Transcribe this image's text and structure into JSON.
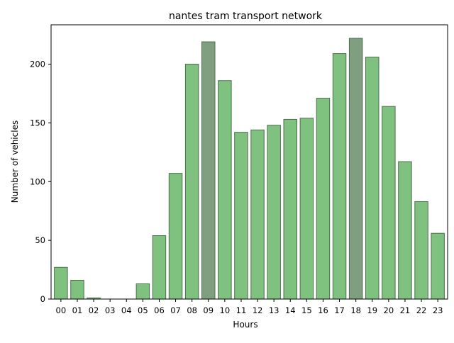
{
  "chart_data": {
    "type": "bar",
    "title": "nantes tram transport network",
    "xlabel": "Hours",
    "ylabel": "Number of vehicles",
    "categories": [
      "00",
      "01",
      "02",
      "03",
      "04",
      "05",
      "06",
      "07",
      "08",
      "09",
      "10",
      "11",
      "12",
      "13",
      "14",
      "15",
      "16",
      "17",
      "18",
      "19",
      "20",
      "21",
      "22",
      "23"
    ],
    "values": [
      27,
      16,
      1,
      0,
      0,
      13,
      54,
      107,
      200,
      219,
      186,
      142,
      144,
      148,
      153,
      154,
      171,
      209,
      222,
      206,
      164,
      117,
      83,
      56
    ],
    "highlight_categories": [
      "09",
      "18"
    ],
    "ylim": [
      0,
      233.5
    ],
    "yticks": [
      0,
      50,
      100,
      150,
      200
    ],
    "grid": false,
    "legend": "none",
    "colors": {
      "bar": "#7fc17f",
      "bar_highlight": "#809f80",
      "bar_edge": "#4f6e4f",
      "axis": "#000000"
    }
  }
}
